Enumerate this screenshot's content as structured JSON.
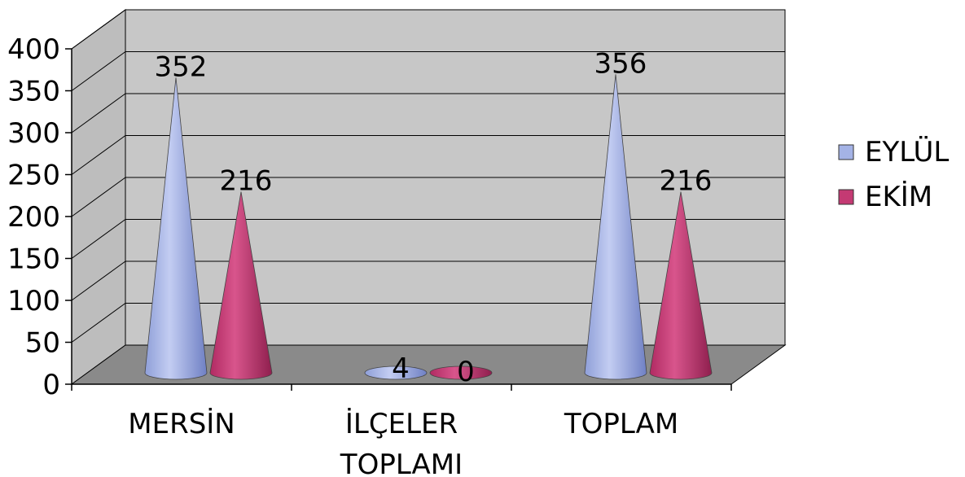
{
  "chart_data": {
    "type": "bar",
    "subtype": "3d-cone",
    "categories": [
      [
        "MERSİN"
      ],
      [
        "İLÇELER",
        "TOPLAMI"
      ],
      [
        "TOPLAM"
      ]
    ],
    "series": [
      {
        "name": "EYLÜL",
        "values": [
          352,
          4,
          356
        ],
        "color": "#a4b3e6"
      },
      {
        "name": "EKİM",
        "values": [
          216,
          0,
          216
        ],
        "color": "#c43a73"
      }
    ],
    "yticks": [
      "0",
      "50",
      "100",
      "150",
      "200",
      "250",
      "300",
      "350",
      "400"
    ],
    "ylim": [
      0,
      400
    ],
    "grid": true,
    "legend": "right",
    "colors": {
      "wall": "#c7c7c7",
      "floor": "#8a8a8a"
    }
  }
}
